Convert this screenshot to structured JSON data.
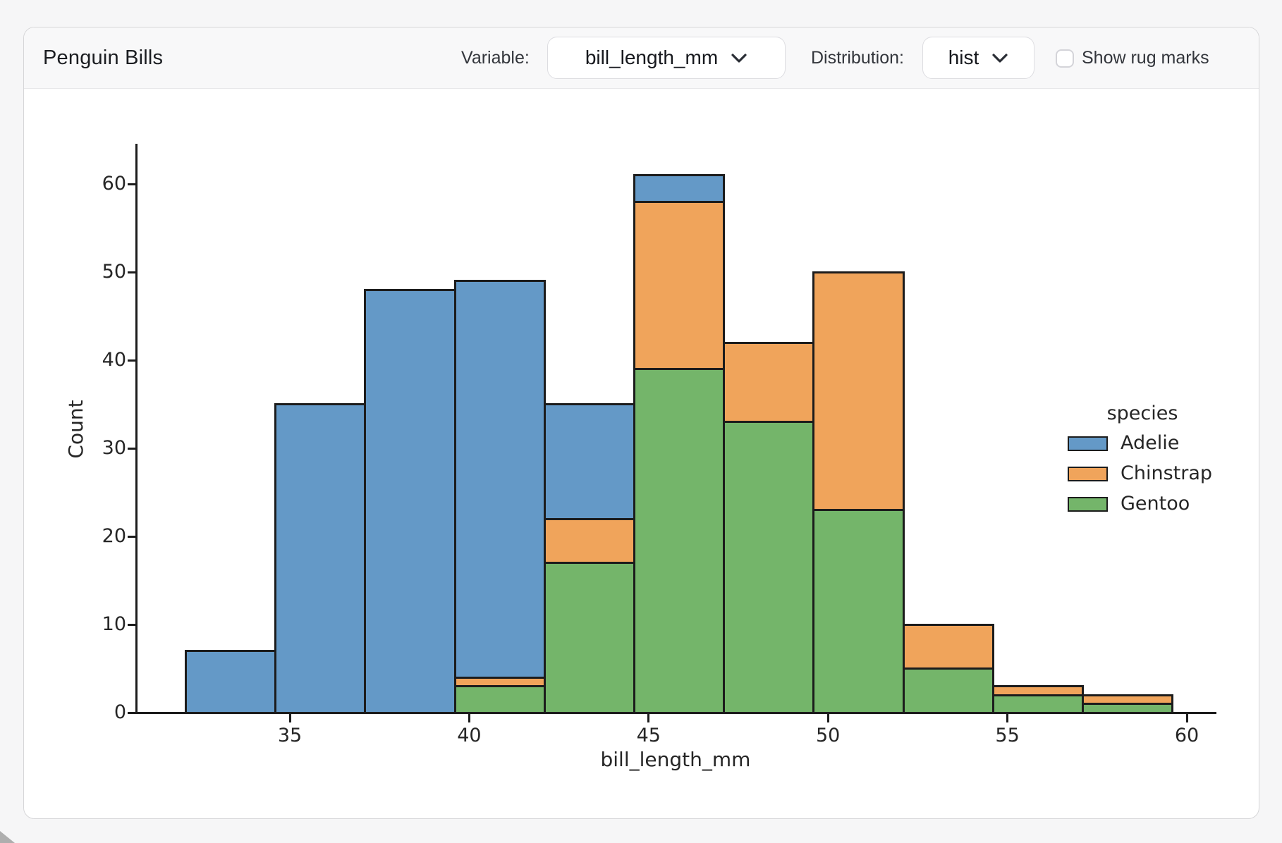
{
  "header": {
    "title": "Penguin Bills",
    "variable": {
      "label": "Variable:",
      "value": "bill_length_mm"
    },
    "distribution": {
      "label": "Distribution:",
      "value": "hist"
    },
    "rug": {
      "label": "Show rug marks",
      "checked": false
    }
  },
  "colors": {
    "page_bg": "#f6f6f7",
    "card_bg": "#ffffff",
    "card_border": "#d6d6d8",
    "header_bg": "#f8f8f9",
    "divider": "#e8e8ea",
    "chart_text": "#262626",
    "bar_edge": "#1c1c1c",
    "adelie": "#6499c7",
    "chinstrap": "#f0a45b",
    "gentoo": "#74b56a"
  },
  "chart_data": {
    "type": "bar",
    "variant": "stacked-histogram",
    "title": "",
    "xlabel": "bill_length_mm",
    "ylabel": "Count",
    "bin_edges": [
      32.1,
      34.6,
      37.1,
      39.6,
      42.1,
      44.6,
      47.1,
      49.6,
      52.1,
      54.6,
      57.1,
      59.6
    ],
    "x_ticks": [
      35,
      40,
      45,
      50,
      55,
      60
    ],
    "y_ticks": [
      0,
      10,
      20,
      30,
      40,
      50,
      60
    ],
    "xlim": [
      30.7,
      60.8
    ],
    "ylim": [
      0,
      64.5
    ],
    "grid": false,
    "legend": {
      "title": "species",
      "position": "right",
      "entries": [
        "Adelie",
        "Chinstrap",
        "Gentoo"
      ]
    },
    "stack_order_bottom_to_top": [
      "Gentoo",
      "Chinstrap",
      "Adelie"
    ],
    "series": [
      {
        "name": "Adelie",
        "color": "#6499c7",
        "values": [
          7,
          35,
          48,
          45,
          13,
          3,
          0,
          0,
          0,
          0,
          0
        ]
      },
      {
        "name": "Chinstrap",
        "color": "#f0a45b",
        "values": [
          0,
          0,
          0,
          1,
          5,
          19,
          9,
          27,
          5,
          1,
          1
        ]
      },
      {
        "name": "Gentoo",
        "color": "#74b56a",
        "values": [
          0,
          0,
          0,
          3,
          17,
          39,
          33,
          23,
          5,
          2,
          1
        ]
      }
    ],
    "totals_per_bin": [
      7,
      35,
      48,
      49,
      35,
      61,
      42,
      50,
      10,
      3,
      2
    ]
  }
}
